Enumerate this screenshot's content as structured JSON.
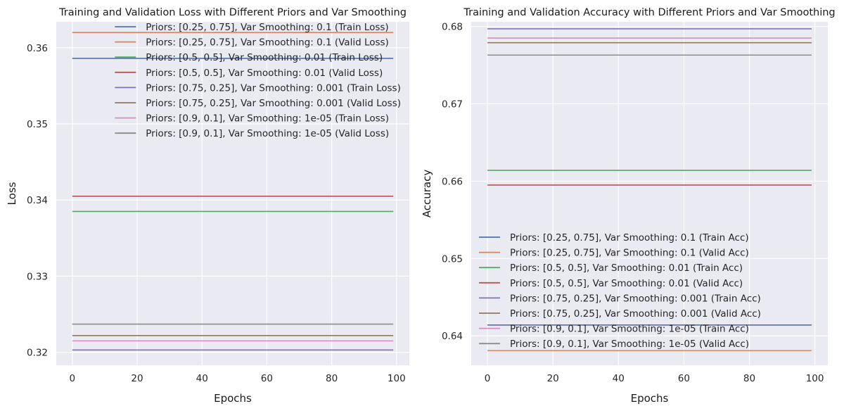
{
  "chart_data": [
    {
      "type": "line",
      "title": "Training and Validation Loss with Different Priors and Var Smoothing",
      "xlabel": "Epochs",
      "ylabel": "Loss",
      "xlim": [
        -4.95,
        103.95
      ],
      "ylim": [
        0.3183,
        0.3634
      ],
      "x_range": [
        0,
        99
      ],
      "xticks": [
        0,
        20,
        40,
        60,
        80,
        100
      ],
      "yticks": [
        0.32,
        0.33,
        0.34,
        0.35,
        0.36
      ],
      "ytick_labels": [
        "0.32",
        "0.33",
        "0.34",
        "0.35",
        "0.36"
      ],
      "grid": true,
      "legend_position": "top-right",
      "series": [
        {
          "name": "Priors: [0.25, 0.75], Var Smoothing: 0.1 (Train Loss)",
          "value": 0.3586,
          "color": "#4c72b0"
        },
        {
          "name": "Priors: [0.25, 0.75], Var Smoothing: 0.1 (Valid Loss)",
          "value": 0.362,
          "color": "#dd8452"
        },
        {
          "name": "Priors: [0.5, 0.5], Var Smoothing: 0.01 (Train Loss)",
          "value": 0.3385,
          "color": "#55a868"
        },
        {
          "name": "Priors: [0.5, 0.5], Var Smoothing: 0.01 (Valid Loss)",
          "value": 0.3405,
          "color": "#c44e52"
        },
        {
          "name": "Priors: [0.75, 0.25], Var Smoothing: 0.001 (Train Loss)",
          "value": 0.3203,
          "color": "#8172b3"
        },
        {
          "name": "Priors: [0.75, 0.25], Var Smoothing: 0.001 (Valid Loss)",
          "value": 0.3222,
          "color": "#937860"
        },
        {
          "name": "Priors: [0.9, 0.1], Var Smoothing: 1e-05 (Train Loss)",
          "value": 0.3215,
          "color": "#da8bc3"
        },
        {
          "name": "Priors: [0.9, 0.1], Var Smoothing: 1e-05 (Valid Loss)",
          "value": 0.3237,
          "color": "#8c8c8c"
        }
      ]
    },
    {
      "type": "line",
      "title": "Training and Validation Accuracy with Different Priors and Var Smoothing",
      "xlabel": "Epochs",
      "ylabel": "Accuracy",
      "xlim": [
        -4.95,
        103.95
      ],
      "ylim": [
        0.6362,
        0.6806
      ],
      "x_range": [
        0,
        99
      ],
      "xticks": [
        0,
        20,
        40,
        60,
        80,
        100
      ],
      "yticks": [
        0.64,
        0.65,
        0.66,
        0.67,
        0.68
      ],
      "ytick_labels": [
        "0.64",
        "0.65",
        "0.66",
        "0.67",
        "0.68"
      ],
      "grid": true,
      "legend_position": "bottom-center",
      "series": [
        {
          "name": "Priors: [0.25, 0.75], Var Smoothing: 0.1 (Train Acc)",
          "value": 0.6414,
          "color": "#4c72b0"
        },
        {
          "name": "Priors: [0.25, 0.75], Var Smoothing: 0.1 (Valid Acc)",
          "value": 0.6381,
          "color": "#dd8452"
        },
        {
          "name": "Priors: [0.5, 0.5], Var Smoothing: 0.01 (Train Acc)",
          "value": 0.6614,
          "color": "#55a868"
        },
        {
          "name": "Priors: [0.5, 0.5], Var Smoothing: 0.01 (Valid Acc)",
          "value": 0.6595,
          "color": "#c44e52"
        },
        {
          "name": "Priors: [0.75, 0.25], Var Smoothing: 0.001 (Train Acc)",
          "value": 0.6797,
          "color": "#8172b3"
        },
        {
          "name": "Priors: [0.75, 0.25], Var Smoothing: 0.001 (Valid Acc)",
          "value": 0.6779,
          "color": "#937860"
        },
        {
          "name": "Priors: [0.9, 0.1], Var Smoothing: 1e-05 (Train Acc)",
          "value": 0.6785,
          "color": "#da8bc3"
        },
        {
          "name": "Priors: [0.9, 0.1], Var Smoothing: 1e-05 (Valid Acc)",
          "value": 0.6763,
          "color": "#8c8c8c"
        }
      ]
    }
  ]
}
